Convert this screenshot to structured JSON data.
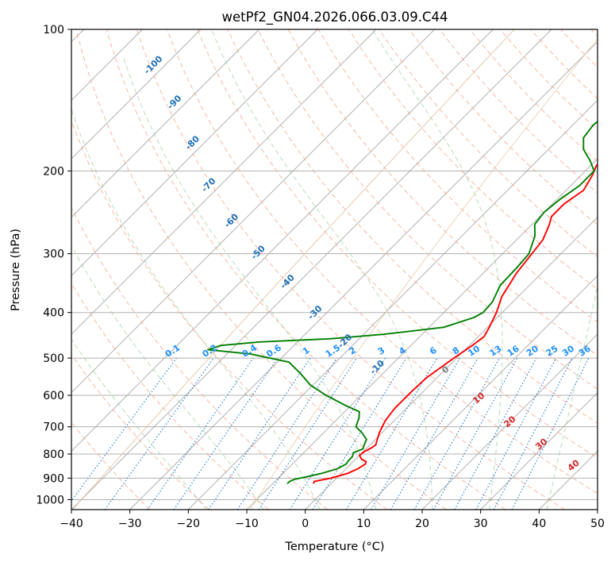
{
  "chart_data": {
    "type": "line",
    "subtype": "skew-t log-p diagram",
    "title": "wetPf2_GN04.2026.066.03.09.C44",
    "xlabel": "Temperature (°C)",
    "ylabel": "Pressure (hPa)",
    "xlim": [
      -40,
      50
    ],
    "ylim": [
      1050,
      100
    ],
    "x_ticks": [
      -40,
      -30,
      -20,
      -10,
      0,
      10,
      20,
      30,
      40,
      50
    ],
    "x_tick_labels": [
      "−40",
      "−30",
      "−20",
      "−10",
      "0",
      "10",
      "20",
      "30",
      "40",
      "50"
    ],
    "y_ticks": [
      100,
      200,
      300,
      400,
      500,
      600,
      700,
      800,
      900,
      1000
    ],
    "y_tick_labels": [
      "100",
      "200",
      "300",
      "400",
      "500",
      "600",
      "700",
      "800",
      "900",
      "1000"
    ],
    "grid": true,
    "isotherm_labels": [
      {
        "temp": -100,
        "text": "-100"
      },
      {
        "temp": -90,
        "text": "-90"
      },
      {
        "temp": -80,
        "text": "-80"
      },
      {
        "temp": -70,
        "text": "-70"
      },
      {
        "temp": -60,
        "text": "-60"
      },
      {
        "temp": -50,
        "text": "-50"
      },
      {
        "temp": -40,
        "text": "-40"
      },
      {
        "temp": -30,
        "text": "-30"
      },
      {
        "temp": -20,
        "text": "-20"
      },
      {
        "temp": -10,
        "text": "-10"
      }
    ],
    "mixing_ratio_labels": [
      "0.1",
      "0.2",
      "0.4",
      "0.6",
      "1",
      "1.5",
      "2",
      "3",
      "4",
      "6",
      "8",
      "10",
      "13",
      "16",
      "20",
      "25",
      "30",
      "36"
    ],
    "moist_adiabat_labels": [
      {
        "text": "0",
        "color": "#808080"
      },
      {
        "text": "10",
        "color": "#d62728"
      },
      {
        "text": "20",
        "color": "#d62728"
      },
      {
        "text": "30",
        "color": "#d62728"
      },
      {
        "text": "40",
        "color": "#d62728"
      }
    ],
    "series": [
      {
        "name": "Temperature",
        "color": "#ff0000",
        "points": [
          [
            925,
            -3.0
          ],
          [
            915,
            -3.3
          ],
          [
            900,
            -1.0
          ],
          [
            880,
            1.0
          ],
          [
            860,
            2.0
          ],
          [
            840,
            2.5
          ],
          [
            830,
            2.2
          ],
          [
            820,
            1.0
          ],
          [
            805,
            0.0
          ],
          [
            790,
            0.2
          ],
          [
            775,
            0.8
          ],
          [
            765,
            1.0
          ],
          [
            750,
            0.5
          ],
          [
            720,
            -0.5
          ],
          [
            680,
            -1.5
          ],
          [
            640,
            -2.0
          ],
          [
            590,
            -2.0
          ],
          [
            550,
            -1.8
          ],
          [
            500,
            -0.5
          ],
          [
            470,
            0.5
          ],
          [
            450,
            1.0
          ],
          [
            430,
            0.3
          ],
          [
            400,
            -1.0
          ],
          [
            370,
            -2.8
          ],
          [
            330,
            -4.3
          ],
          [
            300,
            -5.0
          ],
          [
            280,
            -5.5
          ],
          [
            260,
            -7.0
          ],
          [
            250,
            -8.0
          ],
          [
            235,
            -8.0
          ],
          [
            220,
            -7.0
          ],
          [
            205,
            -8.0
          ],
          [
            195,
            -9.0
          ],
          [
            185,
            -9.0
          ],
          [
            175,
            -8.0
          ],
          [
            165,
            -5.0
          ],
          [
            155,
            -4.0
          ],
          [
            145,
            -4.5
          ],
          [
            130,
            -6.5
          ],
          [
            115,
            -8.5
          ],
          [
            100,
            -12.0
          ]
        ]
      },
      {
        "name": "Dewpoint",
        "color": "#008000",
        "points": [
          [
            925,
            -7.5
          ],
          [
            915,
            -7.5
          ],
          [
            905,
            -7.0
          ],
          [
            895,
            -5.5
          ],
          [
            880,
            -3.5
          ],
          [
            860,
            -1.5
          ],
          [
            840,
            -0.8
          ],
          [
            825,
            -1.0
          ],
          [
            810,
            -1.0
          ],
          [
            795,
            -1.5
          ],
          [
            780,
            -0.5
          ],
          [
            765,
            -1.0
          ],
          [
            745,
            -1.5
          ],
          [
            720,
            -3.5
          ],
          [
            700,
            -5.5
          ],
          [
            670,
            -6.5
          ],
          [
            650,
            -7.5
          ],
          [
            630,
            -11.0
          ],
          [
            600,
            -16.0
          ],
          [
            570,
            -20.5
          ],
          [
            540,
            -24.0
          ],
          [
            510,
            -28.0
          ],
          [
            490,
            -36.0
          ],
          [
            480,
            -44.0
          ],
          [
            470,
            -42.5
          ],
          [
            462,
            -36.5
          ],
          [
            455,
            -25.0
          ],
          [
            445,
            -16.5
          ],
          [
            430,
            -7.5
          ],
          [
            410,
            -4.0
          ],
          [
            400,
            -3.3
          ],
          [
            380,
            -3.5
          ],
          [
            350,
            -5.0
          ],
          [
            320,
            -5.2
          ],
          [
            300,
            -5.5
          ],
          [
            275,
            -7.5
          ],
          [
            260,
            -9.5
          ],
          [
            245,
            -10.0
          ],
          [
            230,
            -9.5
          ],
          [
            215,
            -8.5
          ],
          [
            200,
            -8.5
          ],
          [
            190,
            -11.0
          ],
          [
            180,
            -14.0
          ],
          [
            170,
            -16.0
          ],
          [
            160,
            -16.5
          ],
          [
            150,
            -16.0
          ],
          [
            140,
            -15.0
          ],
          [
            125,
            -15.0
          ],
          [
            110,
            -16.0
          ],
          [
            100,
            -17.0
          ]
        ]
      }
    ]
  }
}
